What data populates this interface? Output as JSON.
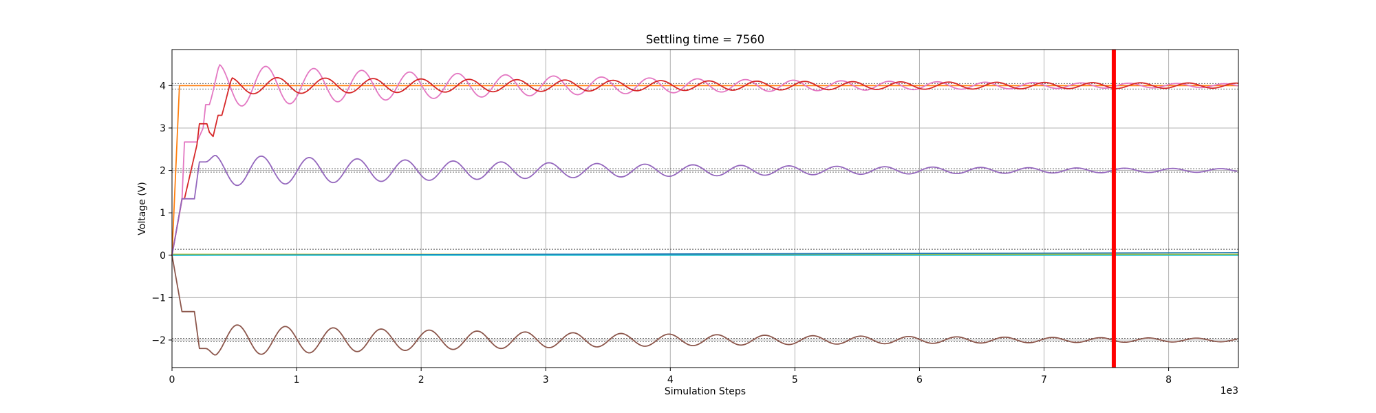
{
  "chart_data": {
    "type": "line",
    "title": "Settling time = 7560",
    "xlabel": "Simulation Steps",
    "ylabel": "Voltage (V)",
    "x_offset_text": "1e3",
    "xlim": [
      0,
      8.56
    ],
    "ylim": [
      -2.65,
      4.85
    ],
    "x_ticks": [
      0,
      1,
      2,
      3,
      4,
      5,
      6,
      7,
      8
    ],
    "x_tick_labels": [
      "0",
      "1",
      "2",
      "3",
      "4",
      "5",
      "6",
      "7",
      "8"
    ],
    "y_ticks": [
      -2,
      -1,
      0,
      1,
      2,
      3,
      4
    ],
    "y_tick_labels": [
      "−2",
      "−1",
      "0",
      "1",
      "2",
      "3",
      "4"
    ],
    "grid": true,
    "settling_time": 7.56,
    "settling_line_color": "#ff0000",
    "reference_bands": [
      {
        "y": 4.05,
        "color": "#555555"
      },
      {
        "y": 3.92,
        "color": "#555555"
      },
      {
        "y": 2.04,
        "color": "#555555"
      },
      {
        "y": 1.96,
        "color": "#555555"
      },
      {
        "y": 0.14,
        "color": "#555555"
      },
      {
        "y": -1.96,
        "color": "#555555"
      },
      {
        "y": -2.04,
        "color": "#555555"
      }
    ],
    "series": [
      {
        "kind": "step",
        "color": "#ff7f0e",
        "x": [
          0,
          0.06,
          0.06,
          8.56
        ],
        "y": [
          0,
          4.0,
          4.0,
          4.0
        ]
      },
      {
        "kind": "flat",
        "color": "#bcbd22",
        "x": [
          0,
          8.56
        ],
        "y": [
          0.02,
          0.02
        ]
      },
      {
        "kind": "flat",
        "color": "#1f77b4",
        "x": [
          0,
          8.56
        ],
        "y": [
          0.0,
          0.06
        ]
      },
      {
        "kind": "flat",
        "color": "#17becf",
        "x": [
          0,
          8.56
        ],
        "y": [
          0.0,
          0.0
        ]
      },
      {
        "kind": "oscillation",
        "color": "#e377c2",
        "base": 4.0,
        "startup_x": [
          0,
          0.08,
          0.1,
          0.18,
          0.2,
          0.25,
          0.27,
          0.3
        ],
        "startup_y": [
          0,
          1.3,
          2.67,
          2.67,
          2.67,
          3.0,
          3.55,
          3.55
        ],
        "osc_start": 0.3,
        "amplitude": 0.52,
        "decay": 0.3,
        "period": 0.385,
        "phase": 0.45
      },
      {
        "kind": "oscillation",
        "color": "#d62728",
        "base": 4.0,
        "startup_x": [
          0,
          0.08,
          0.1,
          0.2,
          0.22,
          0.28,
          0.3,
          0.33,
          0.37
        ],
        "startup_y": [
          0,
          1.33,
          1.33,
          2.6,
          3.1,
          3.1,
          2.9,
          2.8,
          3.3
        ],
        "osc_start": 0.4,
        "amplitude": 0.2,
        "decay": 0.15,
        "period": 0.385,
        "phase": 0.6
      },
      {
        "kind": "oscillation",
        "color": "#9467bd",
        "base": 2.0,
        "startup_x": [
          0,
          0.08,
          0.1,
          0.18,
          0.22,
          0.25
        ],
        "startup_y": [
          0,
          1.33,
          1.33,
          1.33,
          2.2,
          2.2
        ],
        "osc_start": 0.27,
        "amplitude": 0.38,
        "decay": 0.27,
        "period": 0.385,
        "phase": 0.55
      },
      {
        "kind": "oscillation",
        "color": "#8c564b",
        "base": -2.0,
        "startup_x": [
          0,
          0.08,
          0.1,
          0.18,
          0.22,
          0.25
        ],
        "startup_y": [
          0,
          -1.33,
          -1.33,
          -1.33,
          -2.2,
          -2.2
        ],
        "osc_start": 0.27,
        "amplitude": -0.38,
        "decay": 0.27,
        "period": 0.385,
        "phase": 0.55
      }
    ]
  }
}
